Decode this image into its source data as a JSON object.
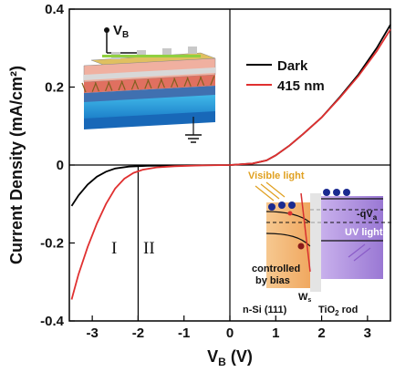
{
  "chart_data": {
    "type": "line",
    "xlabel_main": "V",
    "xlabel_sub": "B",
    "xlabel_unit": " (V)",
    "ylabel": "Current Density (mA/cm²)",
    "xlim": [
      -3.5,
      3.5
    ],
    "ylim": [
      -0.4,
      0.4
    ],
    "x_ticks": [
      "-3",
      "-2",
      "-1",
      "0",
      "1",
      "2",
      "3"
    ],
    "y_ticks": [
      "-0.4",
      "-0.2",
      "0",
      "0.2",
      "0.4"
    ],
    "legend_placement": "top-right",
    "series": [
      {
        "name": "Dark",
        "color": "#000000",
        "points": [
          [
            -3.45,
            -0.105
          ],
          [
            -3.3,
            -0.078
          ],
          [
            -3.1,
            -0.05
          ],
          [
            -2.9,
            -0.03
          ],
          [
            -2.7,
            -0.017
          ],
          [
            -2.5,
            -0.009
          ],
          [
            -2.2,
            -0.004
          ],
          [
            -1.8,
            -0.002
          ],
          [
            -1.0,
            -0.001
          ],
          [
            0,
            0
          ],
          [
            0.5,
            0.004
          ],
          [
            0.8,
            0.012
          ],
          [
            1.0,
            0.025
          ],
          [
            1.3,
            0.05
          ],
          [
            1.6,
            0.08
          ],
          [
            2.0,
            0.122
          ],
          [
            2.4,
            0.175
          ],
          [
            2.8,
            0.232
          ],
          [
            3.2,
            0.3
          ],
          [
            3.5,
            0.36
          ]
        ]
      },
      {
        "name": "415 nm",
        "color": "#e03030",
        "points": [
          [
            -3.45,
            -0.345
          ],
          [
            -3.3,
            -0.28
          ],
          [
            -3.1,
            -0.21
          ],
          [
            -2.9,
            -0.15
          ],
          [
            -2.7,
            -0.1
          ],
          [
            -2.5,
            -0.06
          ],
          [
            -2.3,
            -0.035
          ],
          [
            -2.1,
            -0.02
          ],
          [
            -1.9,
            -0.012
          ],
          [
            -1.6,
            -0.006
          ],
          [
            -1.2,
            -0.003
          ],
          [
            -0.6,
            -0.001
          ],
          [
            0,
            0
          ],
          [
            0.5,
            0.004
          ],
          [
            0.8,
            0.012
          ],
          [
            1.0,
            0.025
          ],
          [
            1.3,
            0.05
          ],
          [
            1.6,
            0.08
          ],
          [
            2.0,
            0.122
          ],
          [
            2.4,
            0.173
          ],
          [
            2.8,
            0.228
          ],
          [
            3.2,
            0.292
          ],
          [
            3.5,
            0.348
          ]
        ]
      }
    ],
    "annotations": {
      "divider_x": -2,
      "region_1": "I",
      "region_2": "II"
    }
  },
  "schematic": {
    "label_main": "V",
    "label_sub": "B"
  },
  "band_diagram": {
    "visible_light": "Visible light",
    "qv_label": "-qV",
    "qv_sub": "a",
    "uv_light": "UV light",
    "controlled_line1": "controlled",
    "controlled_line2": "by bias",
    "w_label": "W",
    "w_sub": "s",
    "n_si": "n-Si (111)",
    "tio2_main": "TiO",
    "tio2_sub": "2",
    "tio2_rest": " rod"
  },
  "colors": {
    "dark": "#000000",
    "light": "#e03030",
    "visible": "#e0a020",
    "uv": "#8a5cc8"
  }
}
